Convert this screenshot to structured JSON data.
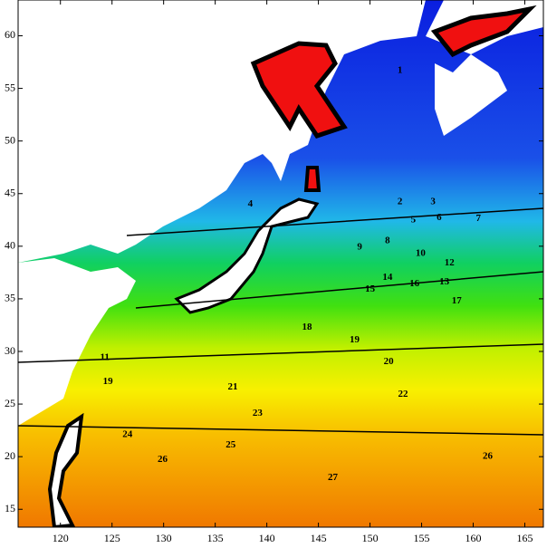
{
  "chart_data": {
    "type": "contour",
    "xlim": [
      115.9,
      166.8
    ],
    "ylim": [
      13.3,
      63.4
    ],
    "xticks": [
      120,
      125,
      130,
      135,
      140,
      145,
      150,
      155,
      160,
      165
    ],
    "yticks": [
      15,
      20,
      25,
      30,
      35,
      40,
      45,
      50,
      55,
      60
    ],
    "contour_labels": [
      {
        "value": 1,
        "x": 152.9,
        "y": 56.7
      },
      {
        "value": 2,
        "x": 152.9,
        "y": 44.2
      },
      {
        "value": 3,
        "x": 156.1,
        "y": 44.2
      },
      {
        "value": 4,
        "x": 138.4,
        "y": 44.0
      },
      {
        "value": 5,
        "x": 154.2,
        "y": 42.5
      },
      {
        "value": 6,
        "x": 156.7,
        "y": 42.7
      },
      {
        "value": 7,
        "x": 160.5,
        "y": 42.6
      },
      {
        "value": 8,
        "x": 151.7,
        "y": 40.5
      },
      {
        "value": 9,
        "x": 149.0,
        "y": 39.9
      },
      {
        "value": 10,
        "x": 154.9,
        "y": 39.3
      },
      {
        "value": 11,
        "x": 124.3,
        "y": 29.4
      },
      {
        "value": 12,
        "x": 157.7,
        "y": 38.4
      },
      {
        "value": 13,
        "x": 157.2,
        "y": 36.6
      },
      {
        "value": 14,
        "x": 151.7,
        "y": 37.0
      },
      {
        "value": 15,
        "x": 150.0,
        "y": 35.9
      },
      {
        "value": 16,
        "x": 154.3,
        "y": 36.4
      },
      {
        "value": 17,
        "x": 158.4,
        "y": 34.8
      },
      {
        "value": 18,
        "x": 143.9,
        "y": 32.3
      },
      {
        "value": 19,
        "x": 148.5,
        "y": 31.1
      },
      {
        "value": 19,
        "x": 124.6,
        "y": 27.1
      },
      {
        "value": 20,
        "x": 151.8,
        "y": 29.0
      },
      {
        "value": 21,
        "x": 136.7,
        "y": 26.6
      },
      {
        "value": 22,
        "x": 153.2,
        "y": 25.9
      },
      {
        "value": 23,
        "x": 139.1,
        "y": 24.1
      },
      {
        "value": 24,
        "x": 126.5,
        "y": 22.1
      },
      {
        "value": 25,
        "x": 136.5,
        "y": 21.1
      },
      {
        "value": 26,
        "x": 129.9,
        "y": 19.7
      },
      {
        "value": 26,
        "x": 161.4,
        "y": 20.0
      },
      {
        "value": 27,
        "x": 146.4,
        "y": 18.0
      }
    ]
  }
}
